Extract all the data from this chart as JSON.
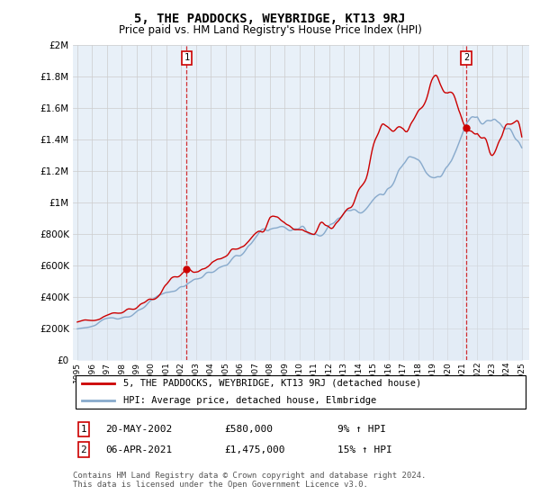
{
  "title": "5, THE PADDOCKS, WEYBRIDGE, KT13 9RJ",
  "subtitle": "Price paid vs. HM Land Registry's House Price Index (HPI)",
  "legend_line1": "5, THE PADDOCKS, WEYBRIDGE, KT13 9RJ (detached house)",
  "legend_line2": "HPI: Average price, detached house, Elmbridge",
  "transaction1_date": "20-MAY-2002",
  "transaction1_price": "£580,000",
  "transaction1_hpi": "9% ↑ HPI",
  "transaction2_date": "06-APR-2021",
  "transaction2_price": "£1,475,000",
  "transaction2_hpi": "15% ↑ HPI",
  "footer": "Contains HM Land Registry data © Crown copyright and database right 2024.\nThis data is licensed under the Open Government Licence v3.0.",
  "red_color": "#cc0000",
  "blue_color": "#88aacc",
  "blue_fill": "#dce8f5",
  "background_color": "#ffffff",
  "grid_color": "#cccccc",
  "ylim": [
    0,
    2000000
  ],
  "xlim_start": 1994.7,
  "xlim_end": 2025.5,
  "transaction1_x": 2002.38,
  "transaction1_y": 580000,
  "transaction2_x": 2021.26,
  "transaction2_y": 1475000
}
